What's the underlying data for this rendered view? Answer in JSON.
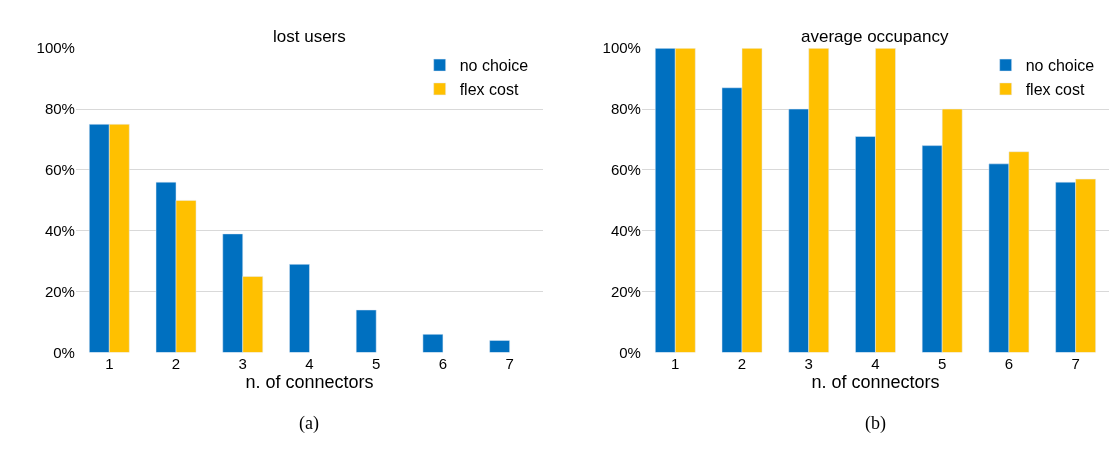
{
  "chart_data": [
    {
      "type": "bar",
      "title": "lost users",
      "xlabel": "n. of connectors",
      "annotations": [
        "(a)"
      ],
      "categories": [
        "1",
        "2",
        "3",
        "4",
        "5",
        "6",
        "7"
      ],
      "series": [
        {
          "name": "no choice",
          "color": "#0070c0",
          "values": [
            75,
            56,
            39,
            29,
            14,
            6,
            4
          ]
        },
        {
          "name": "flex cost",
          "color": "#ffc000",
          "values": [
            75,
            50,
            25,
            null,
            null,
            null,
            null
          ]
        }
      ],
      "ylim": [
        0,
        100
      ],
      "yticks": [
        {
          "value": 0,
          "label": "0%"
        },
        {
          "value": 20,
          "label": "20%"
        },
        {
          "value": 40,
          "label": "40%"
        },
        {
          "value": 60,
          "label": "60%"
        },
        {
          "value": 80,
          "label": "80%"
        },
        {
          "value": 100,
          "label": "100%"
        }
      ],
      "grid": "y",
      "legend": "top right"
    },
    {
      "type": "bar",
      "title": "average occupancy",
      "xlabel": "n. of connectors",
      "annotations": [
        "(b)"
      ],
      "categories": [
        "1",
        "2",
        "3",
        "4",
        "5",
        "6",
        "7"
      ],
      "series": [
        {
          "name": "no choice",
          "color": "#0070c0",
          "values": [
            100,
            87,
            80,
            71,
            68,
            62,
            56
          ]
        },
        {
          "name": "flex cost",
          "color": "#ffc000",
          "values": [
            100,
            100,
            100,
            100,
            80,
            66,
            57
          ]
        }
      ],
      "ylim": [
        0,
        100
      ],
      "yticks": [
        {
          "value": 0,
          "label": "0%"
        },
        {
          "value": 20,
          "label": "20%"
        },
        {
          "value": 40,
          "label": "40%"
        },
        {
          "value": 60,
          "label": "60%"
        },
        {
          "value": 80,
          "label": "80%"
        },
        {
          "value": 100,
          "label": "100%"
        }
      ],
      "grid": "y",
      "legend": "top right"
    }
  ]
}
